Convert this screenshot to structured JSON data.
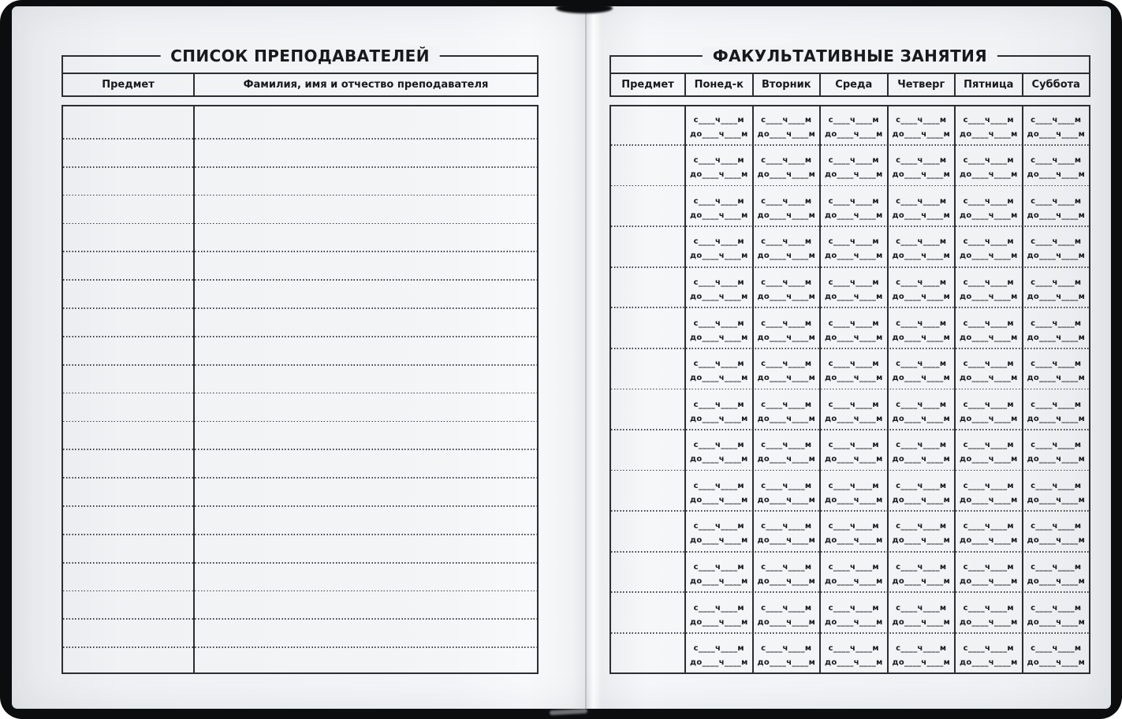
{
  "left_page": {
    "title": "СПИСОК ПРЕПОДАВАТЕЛЕЙ",
    "columns": [
      "Предмет",
      "Фамилия, имя и отчество преподавателя"
    ],
    "ruled_line_count": 19
  },
  "right_page": {
    "title": "ФАКУЛЬТАТИВНЫЕ ЗАНЯТИЯ",
    "columns": [
      "Предмет",
      "Понед-к",
      "Вторник",
      "Среда",
      "Четверг",
      "Пятница",
      "Суббота"
    ],
    "row_count": 14,
    "day_column_count": 6,
    "slot": {
      "from_label": "с____ч____м",
      "to_label": "до____ч____м"
    }
  },
  "colors": {
    "page_background": "#f1f3f5",
    "rule_line": "#2b2e32",
    "dotted_line": "#3c3f44",
    "ink": "#17191d",
    "cover": "#0c0d0f"
  }
}
